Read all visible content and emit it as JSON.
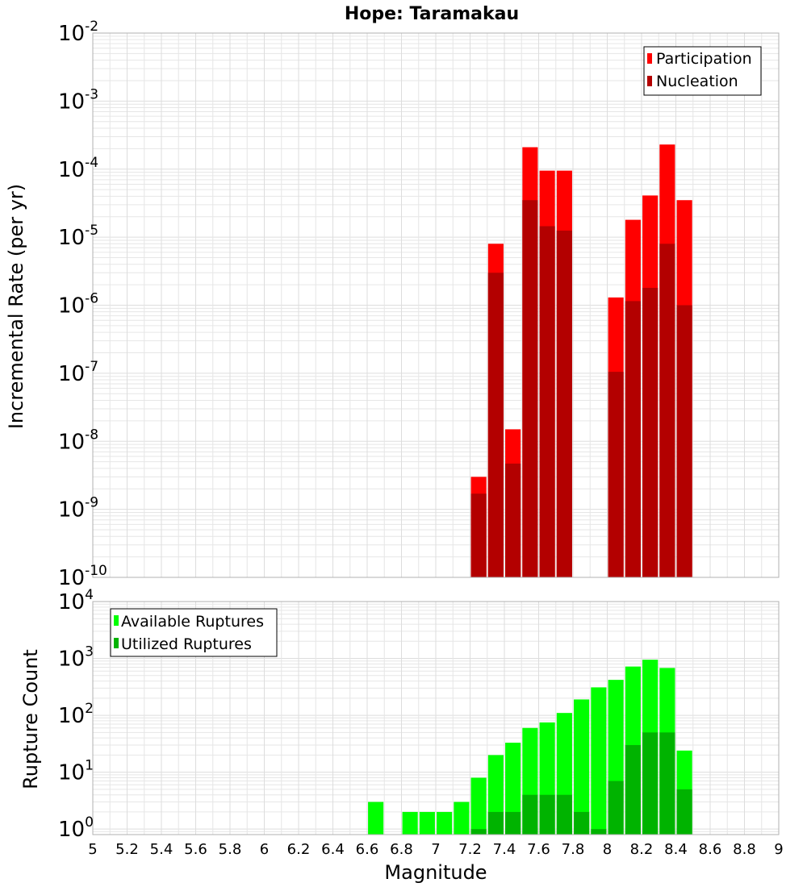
{
  "title": "Hope: Taramakau",
  "colors": {
    "participation": "#ff0000",
    "nucleation": "#b30000",
    "available": "#00ff00",
    "utilized": "#00b300",
    "grid": "#e6e6e6",
    "frame": "#b0b0b0"
  },
  "chart_data": [
    {
      "type": "bar",
      "scale": "log",
      "ylabel": "Incremental Rate (per yr)",
      "ylim": [
        1e-10,
        0.01
      ],
      "xlim": [
        5,
        9
      ],
      "grid": true,
      "legend_position": "top-right",
      "y_ticks": [
        {
          "base": "10",
          "exp": "-10"
        },
        {
          "base": "10",
          "exp": "-9"
        },
        {
          "base": "10",
          "exp": "-8"
        },
        {
          "base": "10",
          "exp": "-7"
        },
        {
          "base": "10",
          "exp": "-6"
        },
        {
          "base": "10",
          "exp": "-5"
        },
        {
          "base": "10",
          "exp": "-4"
        },
        {
          "base": "10",
          "exp": "-3"
        },
        {
          "base": "10",
          "exp": "-2"
        }
      ],
      "x": [
        7.25,
        7.35,
        7.45,
        7.55,
        7.65,
        7.75,
        8.05,
        8.15,
        8.25,
        8.35,
        8.45
      ],
      "series": [
        {
          "name": "Participation",
          "values": [
            3e-09,
            8e-06,
            1.5e-08,
            0.00021,
            9.5e-05,
            9.5e-05,
            1.3e-06,
            1.8e-05,
            4.1e-05,
            0.00023,
            3.5e-05
          ]
        },
        {
          "name": "Nucleation",
          "values": [
            1.7e-09,
            3e-06,
            4.7e-09,
            3.5e-05,
            1.45e-05,
            1.25e-05,
            1.05e-07,
            1.15e-06,
            1.8e-06,
            8e-06,
            1e-06
          ]
        }
      ]
    },
    {
      "type": "bar",
      "scale": "log",
      "xlabel": "Magnitude",
      "ylabel": "Rupture Count",
      "ylim": [
        0.8,
        10000
      ],
      "xlim": [
        5,
        9
      ],
      "grid": true,
      "legend_position": "top-left",
      "y_ticks": [
        {
          "base": "10",
          "exp": "0"
        },
        {
          "base": "10",
          "exp": "1"
        },
        {
          "base": "10",
          "exp": "2"
        },
        {
          "base": "10",
          "exp": "3"
        },
        {
          "base": "10",
          "exp": "4"
        }
      ],
      "x_tick_labels": [
        "5",
        "5.2",
        "5.4",
        "5.6",
        "5.8",
        "6",
        "6.2",
        "6.4",
        "6.6",
        "6.8",
        "7",
        "7.2",
        "7.4",
        "7.6",
        "7.8",
        "8",
        "8.2",
        "8.4",
        "8.6",
        "8.8",
        "9"
      ],
      "x": [
        6.65,
        6.85,
        6.95,
        7.05,
        7.15,
        7.25,
        7.35,
        7.45,
        7.55,
        7.65,
        7.75,
        7.85,
        7.95,
        8.05,
        8.15,
        8.25,
        8.35,
        8.45
      ],
      "series": [
        {
          "name": "Available Ruptures",
          "values": [
            3,
            2,
            2,
            2,
            3,
            8,
            20,
            33,
            60,
            75,
            110,
            190,
            310,
            420,
            720,
            950,
            680,
            24
          ]
        },
        {
          "name": "Utilized Ruptures",
          "values": [
            null,
            null,
            null,
            null,
            null,
            1,
            2,
            2,
            4,
            4,
            4,
            2,
            1,
            7,
            30,
            50,
            50,
            5
          ]
        }
      ]
    }
  ]
}
